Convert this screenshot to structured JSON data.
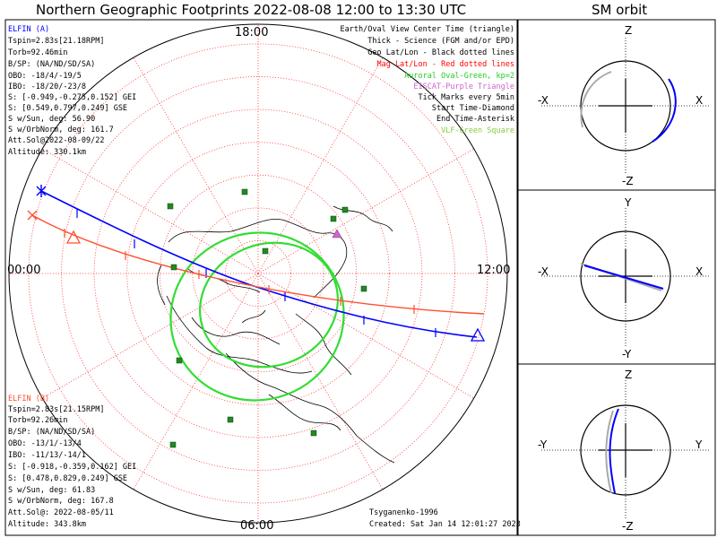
{
  "title": "Northern Geographic Footprints 2022-08-08 12:00 to 13:30 UTC",
  "sm_title": "SM orbit",
  "map": {
    "tick_top": "18:00",
    "tick_left": "00:00",
    "tick_right": "12:00",
    "tick_bottom": "06:00"
  },
  "elfin_a": {
    "title": "ELFIN (A)",
    "color": "#0000ff",
    "lines": [
      "Tspin=2.83s[21.18RPM]",
      "Torb=92.46min",
      "B/SP: (NA/ND/SD/SA)",
      "OBO: -18/4/-19/5",
      "IBO: -18/20/-23/8",
      "S: [-0.949,-0.275,0.152] GEI",
      "S: [0.549,0.797,0.249] GSE",
      "S w/Sun, deg: 56.90",
      "S w/OrbNorm, deg: 161.7",
      "Att.Sol@2022-08-09/22",
      "Altitude: 330.1km"
    ]
  },
  "elfin_b": {
    "title": "ELFIN (B)",
    "color": "#ff5030",
    "lines": [
      "Tspin=2.83s[21.15RPM]",
      "Torb=92.26min",
      "B/SP: (NA/ND/SD/SA)",
      "OBO: -13/1/-13/4",
      "IBO: -11/13/-14/1",
      "S: [-0.918,-0.359,0.162] GEI",
      "S: [0.478,0.829,0.249] GSE",
      "S w/Sun, deg: 61.83",
      "S w/OrbNorm, deg: 167.8",
      "Att.Sol@: 2022-08-05/11",
      "Altitude: 343.8km"
    ]
  },
  "legend": [
    {
      "text": "Earth/Oval View Center Time (triangle)",
      "color": "#000000"
    },
    {
      "text": "Thick - Science (FGM and/or EPD)",
      "color": "#000000"
    },
    {
      "text": "Geo Lat/Lon - Black dotted lines",
      "color": "#000000"
    },
    {
      "text": "Mag Lat/Lon - Red dotted lines",
      "color": "#ff0000"
    },
    {
      "text": "Auroral Oval-Green, kp=2",
      "color": "#22cc22"
    },
    {
      "text": "EISCAT-Purple Triangle",
      "color": "#cc66cc"
    },
    {
      "text": "Tick Marks every 5min",
      "color": "#000000"
    },
    {
      "text": "Start Time-Diamond",
      "color": "#000000"
    },
    {
      "text": "End Time-Asterisk",
      "color": "#000000"
    },
    {
      "text": "VLF-Green Square",
      "color": "#88cc44"
    }
  ],
  "credits": {
    "author": "Tsyganenko-1996",
    "created": "Created: Sat Jan 14 12:01:27 2023"
  },
  "sm_panels": [
    {
      "top": "Z",
      "bottom": "-Z",
      "left": "-X",
      "right": "X"
    },
    {
      "top": "Y",
      "bottom": "-Y",
      "left": "-X",
      "right": "X"
    },
    {
      "top": "Z",
      "bottom": "-Z",
      "left": "-Y",
      "right": "Y"
    }
  ],
  "colors": {
    "mag_grid": "#ff3030",
    "oval": "#33dd33",
    "elfin_a": "#0000ff",
    "elfin_b": "#ff5030",
    "vlf": "#228822",
    "eiscat": "#cc66cc"
  }
}
